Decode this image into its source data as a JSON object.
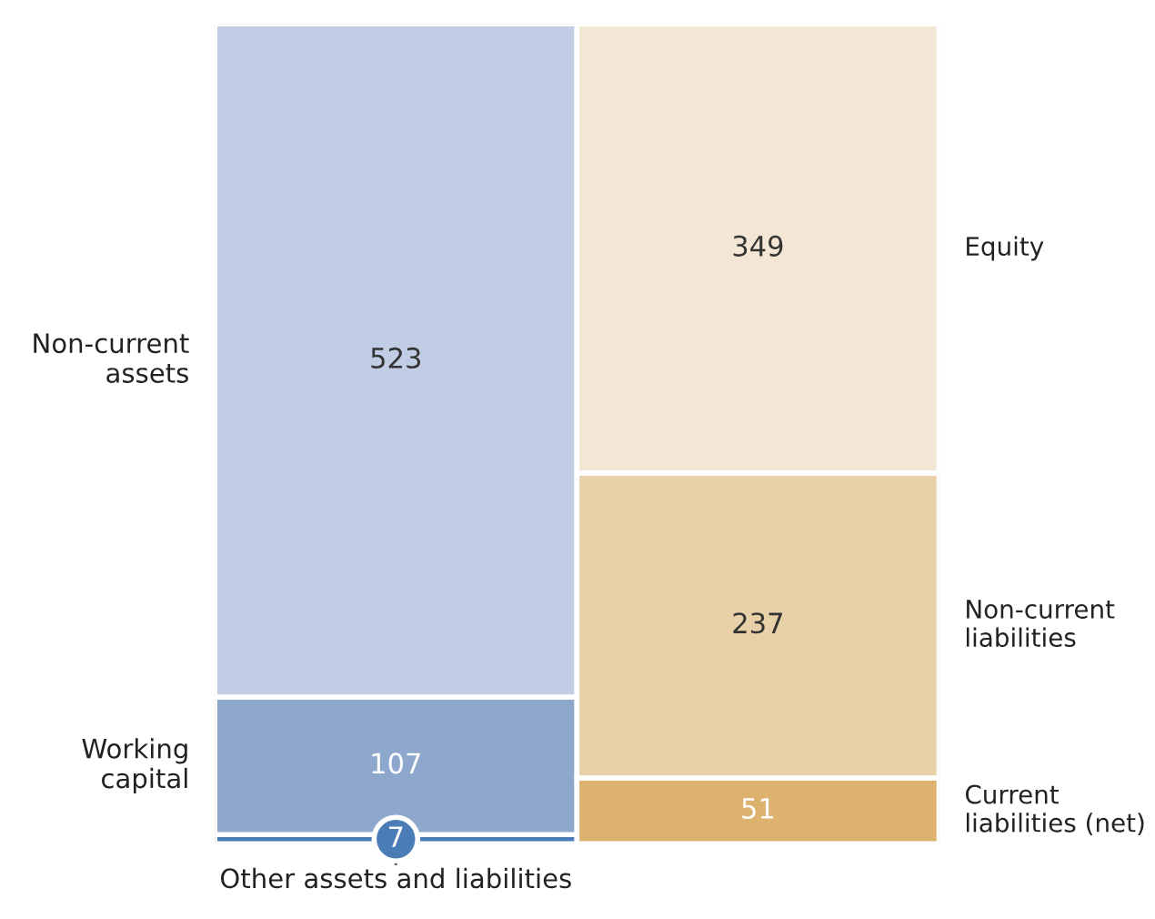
{
  "chart_data": {
    "type": "bar",
    "stacked": true,
    "categories": [
      null,
      null
    ],
    "data_labels": true,
    "series": [
      {
        "name": "Other assets and liabilities",
        "color": "#4a7db5",
        "values": [
          7,
          null
        ]
      },
      {
        "name": "Working capital",
        "color": "#8da8cc",
        "values": [
          107,
          null
        ]
      },
      {
        "name": "Non-current assets",
        "color": "#c1cde4",
        "values": [
          523,
          null
        ]
      },
      {
        "name": "Current liabilities (net)",
        "color": "#dcb26e",
        "values": [
          null,
          51
        ]
      },
      {
        "name": "Non-current liabilities",
        "color": "#e8d0a8",
        "values": [
          null,
          237
        ]
      },
      {
        "name": "Equity",
        "color": "#f3e6d4",
        "values": [
          null,
          349
        ]
      }
    ]
  }
}
